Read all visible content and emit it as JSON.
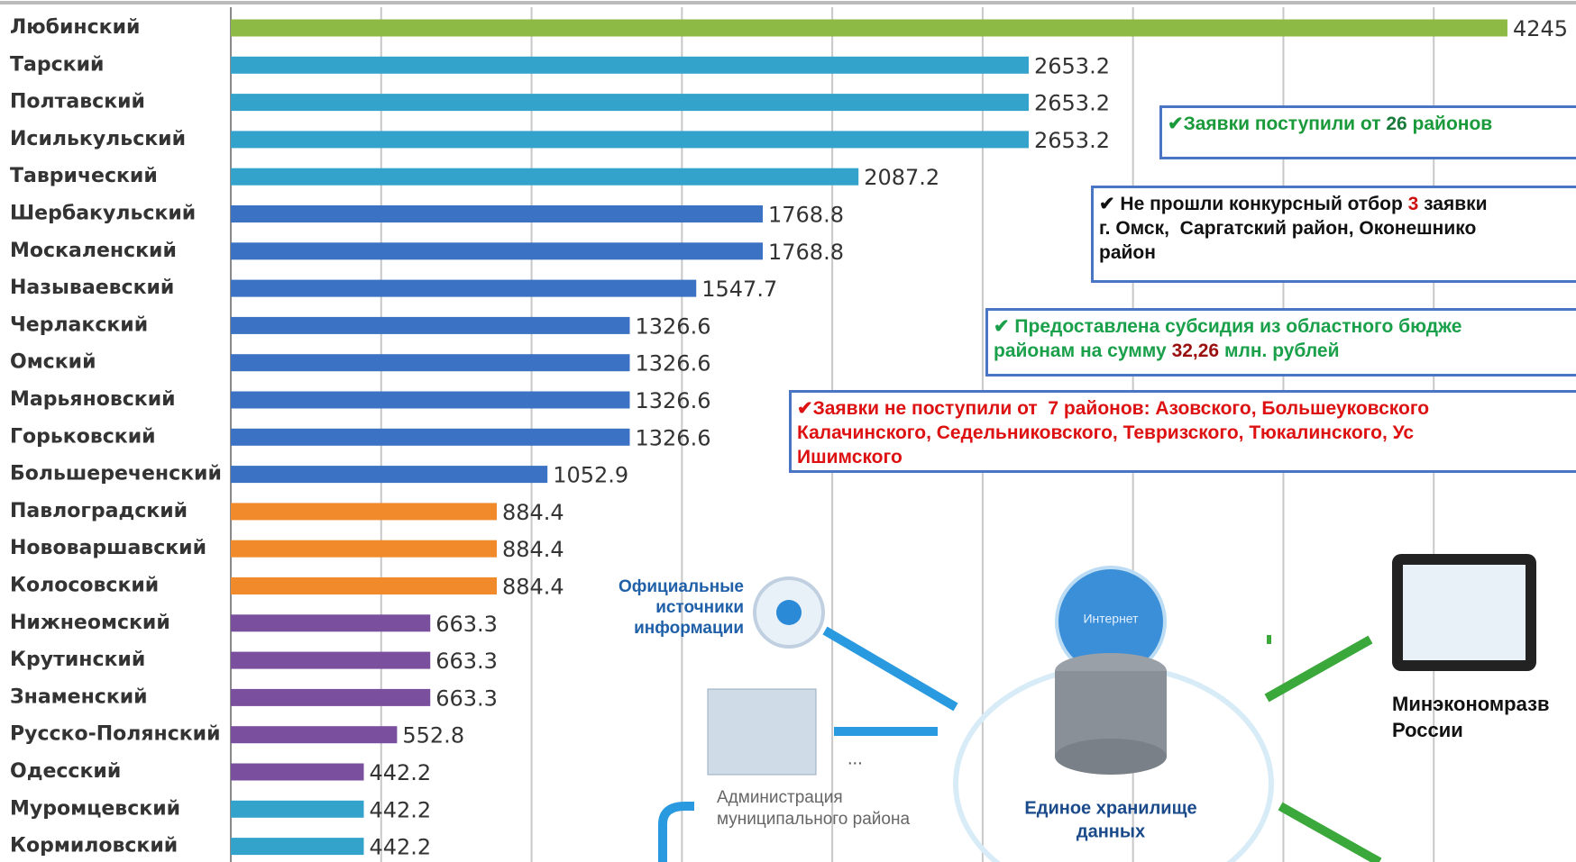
{
  "chart_data": {
    "type": "bar",
    "orientation": "horizontal",
    "categories": [
      "Любинский",
      "Тарский",
      "Полтавский",
      "Исилькульский",
      "Таврический",
      "Шербакульский",
      "Москаленский",
      "Называевский",
      "Черлакский",
      "Омский",
      "Марьяновский",
      "Горьковский",
      "Большереченский",
      "Павлоградский",
      "Нововаршавский",
      "Колосовский",
      "Нижнеомский",
      "Крутинский",
      "Знаменский",
      "Русско-Полянский",
      "Одесский",
      "Муромцевский",
      "Кормиловский"
    ],
    "values": [
      4245,
      2653.2,
      2653.2,
      2653.2,
      2087.2,
      1768.8,
      1768.8,
      1547.7,
      1326.6,
      1326.6,
      1326.6,
      1326.6,
      1052.9,
      884.4,
      884.4,
      884.4,
      663.3,
      663.3,
      663.3,
      552.8,
      442.2,
      442.2,
      442.2
    ],
    "colors": [
      "#8dba45",
      "#34a3cc",
      "#34a3cc",
      "#34a3cc",
      "#34a3cc",
      "#3b72c4",
      "#3b72c4",
      "#3b72c4",
      "#3b72c4",
      "#3b72c4",
      "#3b72c4",
      "#3b72c4",
      "#3b72c4",
      "#f08a2a",
      "#f08a2a",
      "#f08a2a",
      "#7a4f9e",
      "#7a4f9e",
      "#7a4f9e",
      "#7a4f9e",
      "#7a4f9e",
      "#34a3cc",
      "#34a3cc"
    ],
    "xlim": [
      0,
      4500
    ],
    "xticks": [
      500,
      1000,
      1500,
      2000,
      2500,
      3000,
      3500,
      4000
    ],
    "grid": true,
    "annotations": [
      [
        [
          {
            "text": "✔Заявки поступили от ",
            "color": "#1a9a3a"
          },
          {
            "text": "26",
            "color": "#1a7a3a"
          },
          {
            "text": " районов",
            "color": "#1a9a3a"
          }
        ]
      ],
      [
        [
          {
            "text": "✔ Не прошли конкурсный отбор ",
            "color": "#111111"
          },
          {
            "text": "3",
            "color": "#cc1111"
          },
          {
            "text": " заявки",
            "color": "#111111"
          }
        ],
        [
          {
            "text": "г. Омск,  Саргатский район, Оконешнико",
            "color": "#111111"
          }
        ],
        [
          {
            "text": "район",
            "color": "#111111"
          }
        ]
      ],
      [
        [
          {
            "text": "✔ Предоставлена субсидия из областного бюдже",
            "color": "#1aa04a"
          }
        ],
        [
          {
            "text": "районам на сумму ",
            "color": "#1aa04a"
          },
          {
            "text": "32,26",
            "color": "#9a1010"
          },
          {
            "text": " млн. рублей",
            "color": "#1aa04a"
          }
        ]
      ],
      [
        [
          {
            "text": "✔Заявки не поступили от  7 районов: Азовского, Большеуковского",
            "color": "#dd1111"
          }
        ],
        [
          {
            "text": "Калачинского, Седельниковского, Тевризского, Тюкалинского, Ус",
            "color": "#dd1111"
          }
        ],
        [
          {
            "text": "Ишимского",
            "color": "#dd1111"
          }
        ]
      ]
    ]
  },
  "diagram": {
    "sources": [
      "Официальные",
      "источники",
      "информации"
    ],
    "internet": "Интернет",
    "dots": "...",
    "administration": [
      "Администрация",
      "муниципального района"
    ],
    "storage": [
      "Единое хранилище",
      "данных"
    ],
    "ministry": [
      "Минэкономразв",
      "России"
    ]
  }
}
